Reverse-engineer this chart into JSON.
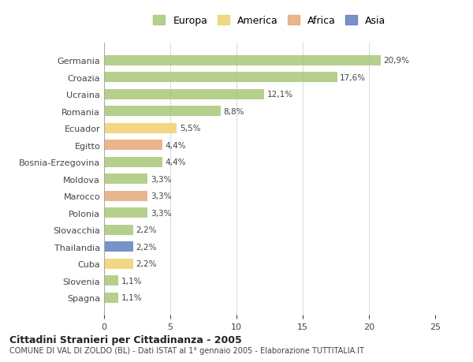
{
  "categories": [
    "Germania",
    "Croazia",
    "Ucraina",
    "Romania",
    "Ecuador",
    "Egitto",
    "Bosnia-Erzegovina",
    "Moldova",
    "Marocco",
    "Polonia",
    "Slovacchia",
    "Thailandia",
    "Cuba",
    "Slovenia",
    "Spagna"
  ],
  "values": [
    20.9,
    17.6,
    12.1,
    8.8,
    5.5,
    4.4,
    4.4,
    3.3,
    3.3,
    3.3,
    2.2,
    2.2,
    2.2,
    1.1,
    1.1
  ],
  "labels": [
    "20,9%",
    "17,6%",
    "12,1%",
    "8,8%",
    "5,5%",
    "4,4%",
    "4,4%",
    "3,3%",
    "3,3%",
    "3,3%",
    "2,2%",
    "2,2%",
    "2,2%",
    "1,1%",
    "1,1%"
  ],
  "colors": [
    "#a8c878",
    "#a8c878",
    "#a8c878",
    "#a8c878",
    "#f0d070",
    "#e8a878",
    "#a8c878",
    "#a8c878",
    "#e8a878",
    "#a8c878",
    "#a8c878",
    "#6080c0",
    "#f0d070",
    "#a8c878",
    "#a8c878"
  ],
  "continent": [
    "Europa",
    "Europa",
    "Europa",
    "Europa",
    "America",
    "Africa",
    "Europa",
    "Europa",
    "Africa",
    "Europa",
    "Europa",
    "Asia",
    "America",
    "Europa",
    "Europa"
  ],
  "legend_labels": [
    "Europa",
    "America",
    "Africa",
    "Asia"
  ],
  "legend_colors": [
    "#a8c878",
    "#f0d070",
    "#e8a878",
    "#6080c0"
  ],
  "title_bold": "Cittadini Stranieri per Cittadinanza - 2005",
  "subtitle": "COMUNE DI VAL DI ZOLDO (BL) - Dati ISTAT al 1° gennaio 2005 - Elaborazione TUTTITALIA.IT",
  "xlim": [
    0,
    25
  ],
  "background_color": "#ffffff",
  "grid_color": "#dddddd",
  "bar_height": 0.6
}
